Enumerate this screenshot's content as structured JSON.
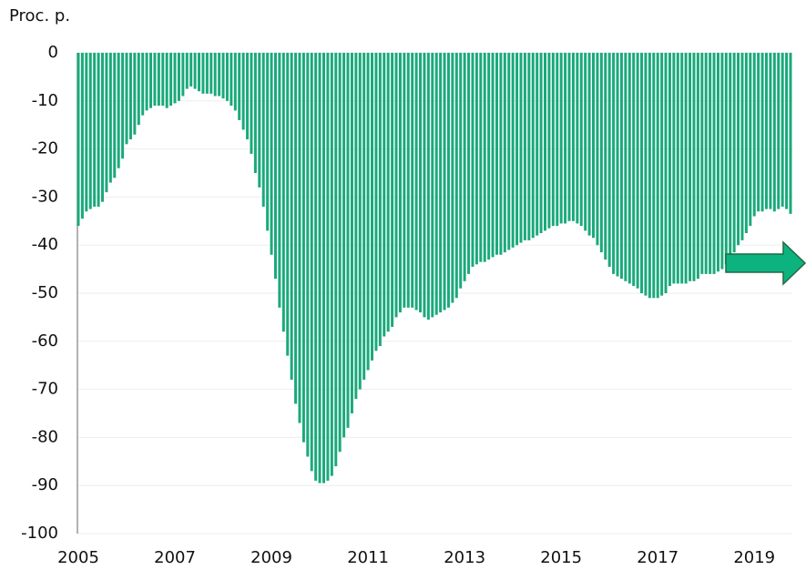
{
  "chart_data": {
    "type": "bar",
    "y_label": "Proc. p.",
    "categories": [
      "2005",
      null,
      null,
      null,
      null,
      null,
      null,
      null,
      null,
      null,
      null,
      null,
      null,
      null,
      null,
      null,
      null,
      null,
      null,
      null,
      null,
      null,
      null,
      null,
      "2007",
      null,
      null,
      null,
      null,
      null,
      null,
      null,
      null,
      null,
      null,
      null,
      null,
      null,
      null,
      null,
      null,
      null,
      null,
      null,
      null,
      null,
      null,
      null,
      "2009",
      null,
      null,
      null,
      null,
      null,
      null,
      null,
      null,
      null,
      null,
      null,
      null,
      null,
      null,
      null,
      null,
      null,
      null,
      null,
      null,
      null,
      null,
      null,
      "2011",
      null,
      null,
      null,
      null,
      null,
      null,
      null,
      null,
      null,
      null,
      null,
      null,
      null,
      null,
      null,
      null,
      null,
      null,
      null,
      null,
      null,
      null,
      null,
      "2013",
      null,
      null,
      null,
      null,
      null,
      null,
      null,
      null,
      null,
      null,
      null,
      null,
      null,
      null,
      null,
      null,
      null,
      null,
      null,
      null,
      null,
      null,
      null,
      "2015",
      null,
      null,
      null,
      null,
      null,
      null,
      null,
      null,
      null,
      null,
      null,
      null,
      null,
      null,
      null,
      null,
      null,
      null,
      null,
      null,
      null,
      null,
      null,
      "2017",
      null,
      null,
      null,
      null,
      null,
      null,
      null,
      null,
      null,
      null,
      null,
      null,
      null,
      null,
      null,
      null,
      null,
      null,
      null,
      null,
      null,
      null,
      null,
      "2019",
      null,
      null,
      null,
      null,
      null,
      null,
      null,
      null,
      null
    ],
    "values": [
      -36,
      -34.5,
      -33,
      -32.5,
      -32,
      -32,
      -31,
      -29,
      -27,
      -26,
      -24,
      -22,
      -19,
      -18,
      -17,
      -15,
      -13,
      -12,
      -11.5,
      -11,
      -11,
      -11,
      -11.5,
      -11,
      -10.5,
      -10,
      -9,
      -7.5,
      -7,
      -7.5,
      -8,
      -8.5,
      -8.5,
      -8.5,
      -9,
      -9,
      -9.5,
      -10,
      -11,
      -12,
      -14,
      -16,
      -18,
      -21,
      -25,
      -28,
      -32,
      -37,
      -42,
      -47,
      -53,
      -58,
      -63,
      -68,
      -73,
      -77,
      -81,
      -84,
      -87,
      -89,
      -89.5,
      -89.5,
      -89,
      -88,
      -86,
      -83,
      -80,
      -78,
      -75,
      -72,
      -70,
      -68,
      -66,
      -64,
      -62,
      -61,
      -59,
      -58,
      -57,
      -55,
      -54,
      -53,
      -53,
      -53,
      -53.5,
      -54,
      -55,
      -55.5,
      -55,
      -54.5,
      -54,
      -53.5,
      -53,
      -52,
      -51,
      -49,
      -47.5,
      -46,
      -44.5,
      -44,
      -43.5,
      -43.5,
      -43,
      -42.5,
      -42,
      -42,
      -41.5,
      -41,
      -40.5,
      -40,
      -39.5,
      -39,
      -39,
      -38.5,
      -38,
      -37.5,
      -37,
      -36.5,
      -36,
      -36,
      -35.5,
      -35.5,
      -35,
      -35,
      -35.5,
      -36,
      -37,
      -38,
      -38.5,
      -40,
      -41.5,
      -43,
      -44.5,
      -46,
      -46.5,
      -47,
      -47.5,
      -48,
      -48.5,
      -49,
      -50,
      -50.5,
      -51,
      -51,
      -51,
      -50.5,
      -50,
      -48.5,
      -48,
      -48,
      -48,
      -48,
      -47.5,
      -47.5,
      -47,
      -46,
      -46,
      -46,
      -46,
      -45.5,
      -45,
      -44,
      -43,
      -41.5,
      -40,
      -39,
      -37.5,
      -36,
      -34,
      -33,
      -33,
      -32.5,
      -32.5,
      -33,
      -32.5,
      -32,
      -32.5,
      -33.5
    ],
    "color": "#1aa97b",
    "ylim": [
      -100,
      0
    ],
    "yticks": [
      0,
      -10,
      -20,
      -30,
      -40,
      -50,
      -60,
      -70,
      -80,
      -90,
      -100
    ],
    "grid": true
  }
}
